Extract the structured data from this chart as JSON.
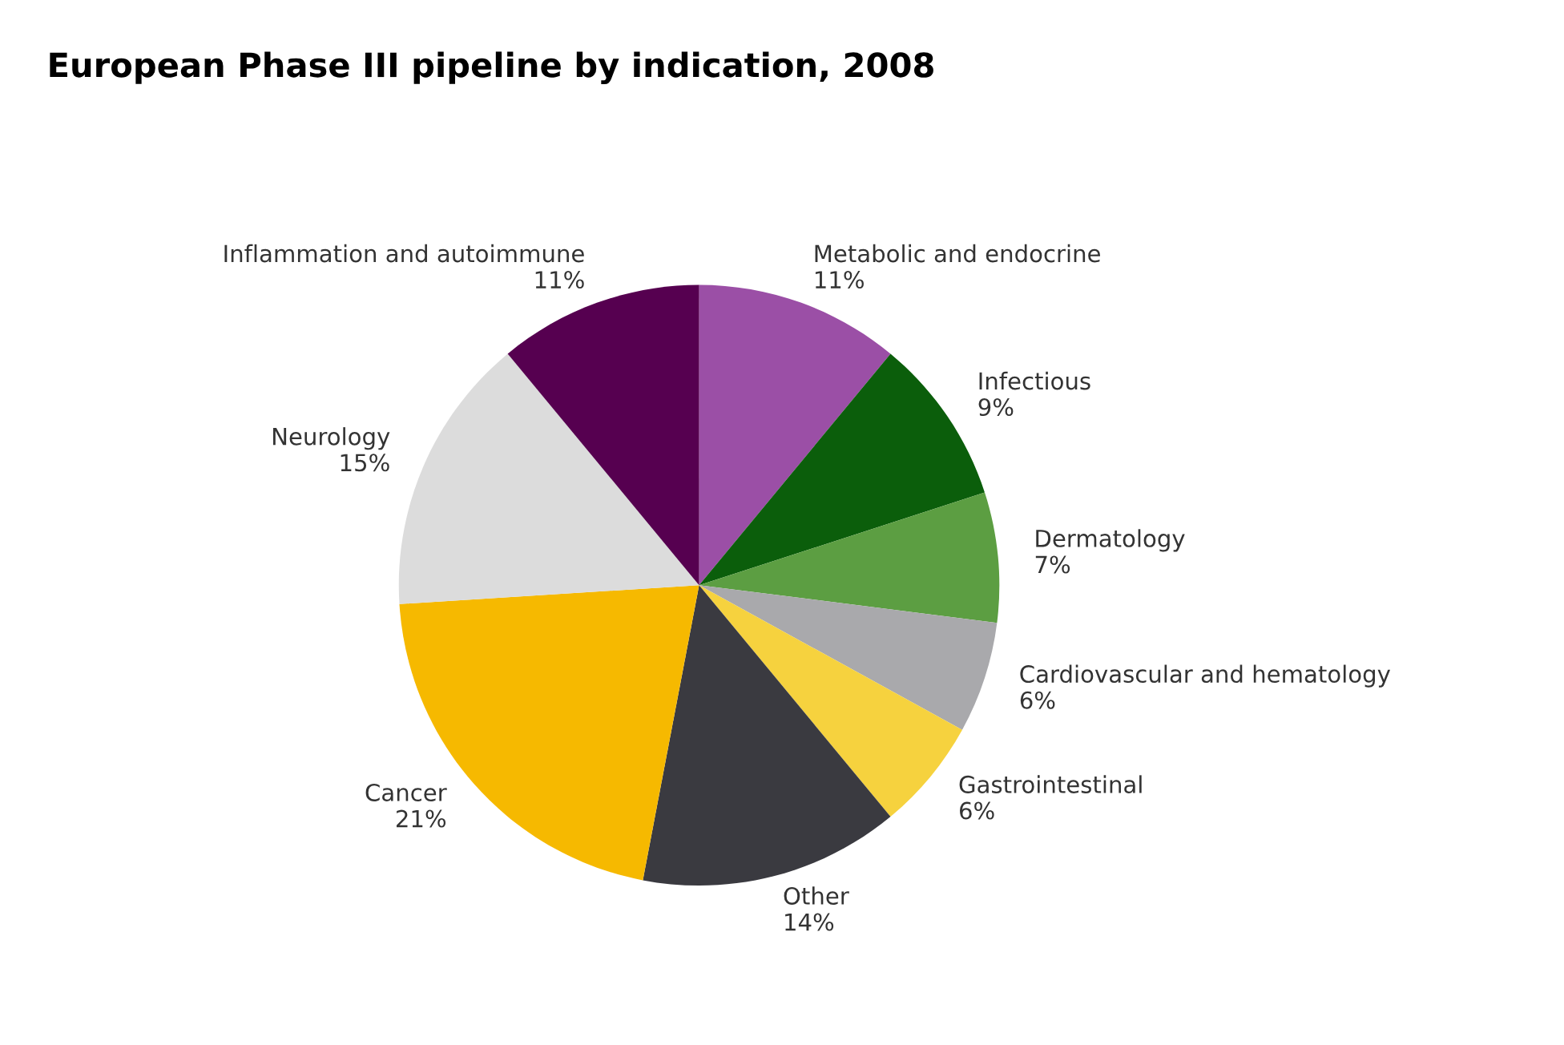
{
  "chart_data": {
    "type": "pie",
    "title": "European Phase III pipeline by indication, 2008",
    "categories": [
      "Metabolic and endocrine",
      "Infectious",
      "Dermatology",
      "Cardiovascular and hematology",
      "Gastrointestinal",
      "Other",
      "Cancer",
      "Neurology",
      "Inflammation and autoimmune"
    ],
    "values": [
      11,
      9,
      7,
      6,
      6,
      14,
      21,
      15,
      11
    ],
    "value_labels": [
      "11%",
      "9%",
      "7%",
      "6%",
      "6%",
      "14%",
      "21%",
      "15%",
      "11%"
    ],
    "colors": [
      "#9b4fa6",
      "#0b5e0b",
      "#5c9e42",
      "#a9a9ac",
      "#f6d23e",
      "#3a3a40",
      "#f6b900",
      "#dcdcdc",
      "#560050"
    ],
    "legend": false
  }
}
